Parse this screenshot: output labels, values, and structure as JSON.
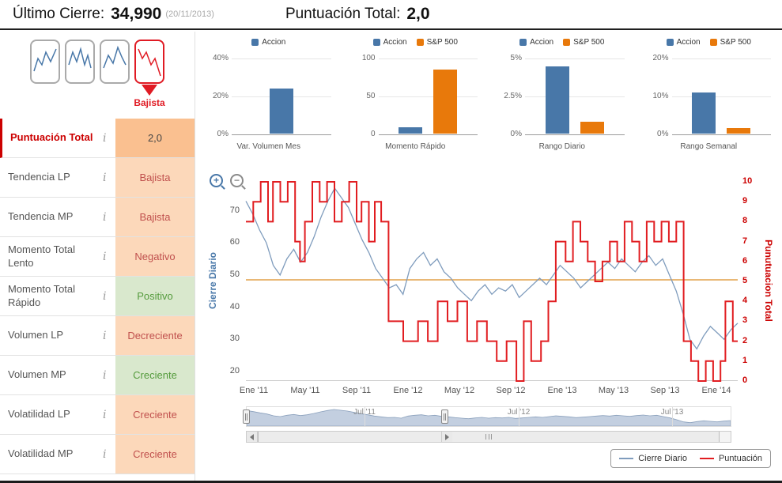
{
  "header": {
    "last_close_label": "Último Cierre:",
    "last_close_value": "34,990",
    "last_close_date": "(20/11/2013)",
    "total_score_label": "Puntuación Total:",
    "total_score_value": "2,0"
  },
  "trend_selector": {
    "selected_label": "Bajista",
    "icons": [
      "trend-pattern-1",
      "trend-pattern-2",
      "trend-pattern-3",
      "trend-pattern-bajista"
    ]
  },
  "indicator_table": {
    "info_icon_glyph": "i",
    "rows": [
      {
        "label": "Puntuación Total",
        "value": "2,0",
        "state": "score"
      },
      {
        "label": "Tendencia LP",
        "value": "Bajista",
        "state": "negative"
      },
      {
        "label": "Tendencia MP",
        "value": "Bajista",
        "state": "negative"
      },
      {
        "label": "Momento Total Lento",
        "value": "Negativo",
        "state": "negative"
      },
      {
        "label": "Momento Total Rápido",
        "value": "Positivo",
        "state": "positive"
      },
      {
        "label": "Volumen LP",
        "value": "Decreciente",
        "state": "negative"
      },
      {
        "label": "Volumen MP",
        "value": "Creciente",
        "state": "positive"
      },
      {
        "label": "Volatilidad LP",
        "value": "Creciente",
        "state": "negative"
      },
      {
        "label": "Volatilidad MP",
        "value": "Creciente",
        "state": "negative"
      }
    ]
  },
  "main_controls": {
    "zoom_in_glyph": "+",
    "zoom_out_glyph": "−"
  },
  "colors": {
    "accent_blue": "#4877a8",
    "accent_orange": "#e8790b",
    "line_blue": "#7f9cbd",
    "line_red": "#e11d21",
    "threshold_orange": "#e2a148",
    "negative_bg": "#fcd8ba",
    "positive_bg": "#d9e8cd",
    "score_bg": "#fac090"
  },
  "chart_data": [
    {
      "type": "bar",
      "title": "Var. Volumen Mes",
      "yticks": [
        "40%",
        "20%",
        "0%"
      ],
      "ymax": 40,
      "series": [
        {
          "name": "Accion",
          "value": 24,
          "color": "#4877a8"
        }
      ]
    },
    {
      "type": "bar",
      "title": "Momento Rápido",
      "yticks": [
        "100",
        "50",
        "0"
      ],
      "ymax": 100,
      "series": [
        {
          "name": "Accion",
          "value": 8,
          "color": "#4877a8"
        },
        {
          "name": "S&P 500",
          "value": 85,
          "color": "#e8790b"
        }
      ]
    },
    {
      "type": "bar",
      "title": "Rango Diario",
      "yticks": [
        "5%",
        "2.5%",
        "0%"
      ],
      "ymax": 5,
      "series": [
        {
          "name": "Accion",
          "value": 4.5,
          "color": "#4877a8"
        },
        {
          "name": "S&P 500",
          "value": 0.8,
          "color": "#e8790b"
        }
      ]
    },
    {
      "type": "bar",
      "title": "Rango Semanal",
      "yticks": [
        "20%",
        "10%",
        "0%"
      ],
      "ymax": 20,
      "series": [
        {
          "name": "Accion",
          "value": 11,
          "color": "#4877a8"
        },
        {
          "name": "S&P 500",
          "value": 1.5,
          "color": "#e8790b"
        }
      ]
    },
    {
      "type": "line",
      "x_range": [
        "Ene '11",
        "Ene '14"
      ],
      "left_axis": {
        "title": "Cierre Diario",
        "ticks": [
          70,
          60,
          50,
          40,
          30,
          20
        ],
        "min": 17,
        "max": 79
      },
      "right_axis": {
        "title": "Punutuacion Total",
        "ticks": [
          10,
          9,
          8,
          7,
          6,
          5,
          4,
          3,
          2,
          1,
          0
        ],
        "min": 0,
        "max": 10
      },
      "x_labels": [
        "Ene '11",
        "May '11",
        "Sep '11",
        "Ene '12",
        "May '12",
        "Sep '12",
        "Ene '13",
        "May '13",
        "Sep '13",
        "Ene '14"
      ],
      "threshold": {
        "axis": "left",
        "value": 48.5,
        "color": "#e2a148"
      },
      "series": [
        {
          "name": "Cierre Diario",
          "axis": "left",
          "color": "#7f9cbd",
          "values": [
            73,
            69,
            64,
            60,
            53,
            50,
            55,
            58,
            54,
            57,
            62,
            68,
            73,
            77,
            74,
            71,
            66,
            61,
            57,
            52,
            49,
            46,
            47,
            44,
            52,
            55,
            57,
            53,
            55,
            51,
            49,
            46,
            44,
            42,
            45,
            47,
            44,
            46,
            45,
            47,
            43,
            45,
            47,
            49,
            47,
            50,
            53,
            51,
            49,
            46,
            48,
            50,
            52,
            54,
            52,
            55,
            53,
            51,
            54,
            56,
            53,
            55,
            50,
            45,
            38,
            30,
            27,
            31,
            34,
            32,
            30,
            33,
            35
          ]
        },
        {
          "name": "Puntuación",
          "axis": "right",
          "color": "#e11d21",
          "step": true,
          "points": [
            [
              0.0,
              8
            ],
            [
              0.015,
              9
            ],
            [
              0.03,
              10
            ],
            [
              0.045,
              8
            ],
            [
              0.055,
              10
            ],
            [
              0.07,
              9
            ],
            [
              0.085,
              10
            ],
            [
              0.1,
              7
            ],
            [
              0.11,
              6
            ],
            [
              0.12,
              8
            ],
            [
              0.135,
              10
            ],
            [
              0.15,
              9
            ],
            [
              0.165,
              10
            ],
            [
              0.18,
              8
            ],
            [
              0.195,
              9
            ],
            [
              0.21,
              10
            ],
            [
              0.225,
              8
            ],
            [
              0.235,
              9
            ],
            [
              0.25,
              7
            ],
            [
              0.262,
              9
            ],
            [
              0.275,
              8
            ],
            [
              0.29,
              3
            ],
            [
              0.32,
              2
            ],
            [
              0.35,
              3
            ],
            [
              0.37,
              2
            ],
            [
              0.39,
              4
            ],
            [
              0.41,
              3
            ],
            [
              0.43,
              4
            ],
            [
              0.45,
              2
            ],
            [
              0.47,
              3
            ],
            [
              0.49,
              2
            ],
            [
              0.51,
              1
            ],
            [
              0.53,
              2
            ],
            [
              0.55,
              0
            ],
            [
              0.565,
              3
            ],
            [
              0.58,
              1
            ],
            [
              0.6,
              2
            ],
            [
              0.615,
              4
            ],
            [
              0.63,
              7
            ],
            [
              0.65,
              6
            ],
            [
              0.665,
              8
            ],
            [
              0.68,
              7
            ],
            [
              0.695,
              6
            ],
            [
              0.71,
              5
            ],
            [
              0.725,
              6
            ],
            [
              0.74,
              7
            ],
            [
              0.755,
              6
            ],
            [
              0.77,
              8
            ],
            [
              0.785,
              7
            ],
            [
              0.8,
              6
            ],
            [
              0.815,
              8
            ],
            [
              0.83,
              7
            ],
            [
              0.845,
              8
            ],
            [
              0.86,
              7
            ],
            [
              0.875,
              8
            ],
            [
              0.89,
              2
            ],
            [
              0.905,
              1
            ],
            [
              0.92,
              0
            ],
            [
              0.935,
              1
            ],
            [
              0.95,
              0
            ],
            [
              0.965,
              1
            ],
            [
              0.975,
              4
            ],
            [
              0.99,
              2
            ],
            [
              1.0,
              2
            ]
          ]
        }
      ],
      "navigator_labels": [
        {
          "label": "Jul '11",
          "f": 0.244
        },
        {
          "label": "Jul '12",
          "f": 0.562
        },
        {
          "label": "Jul '13",
          "f": 0.879
        }
      ],
      "legend": [
        "Cierre Diario",
        "Puntuación"
      ]
    }
  ]
}
